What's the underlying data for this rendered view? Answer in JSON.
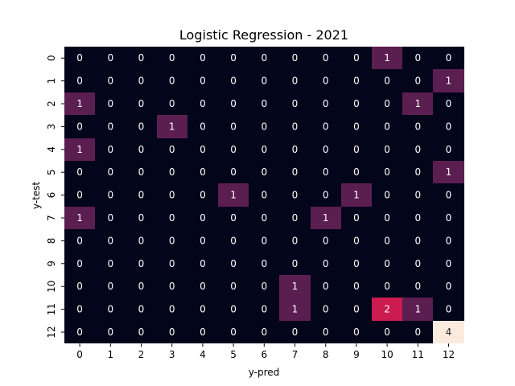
{
  "chart_data": {
    "type": "heatmap",
    "title": "Logistic Regression - 2021",
    "xlabel": "y-pred",
    "ylabel": "y-test",
    "x_categories": [
      "0",
      "1",
      "2",
      "3",
      "4",
      "5",
      "6",
      "7",
      "8",
      "9",
      "10",
      "11",
      "12"
    ],
    "y_categories": [
      "0",
      "1",
      "2",
      "3",
      "4",
      "5",
      "6",
      "7",
      "8",
      "9",
      "10",
      "11",
      "12"
    ],
    "values": [
      [
        0,
        0,
        0,
        0,
        0,
        0,
        0,
        0,
        0,
        0,
        1,
        0,
        0
      ],
      [
        0,
        0,
        0,
        0,
        0,
        0,
        0,
        0,
        0,
        0,
        0,
        0,
        1
      ],
      [
        1,
        0,
        0,
        0,
        0,
        0,
        0,
        0,
        0,
        0,
        0,
        1,
        0
      ],
      [
        0,
        0,
        0,
        1,
        0,
        0,
        0,
        0,
        0,
        0,
        0,
        0,
        0
      ],
      [
        1,
        0,
        0,
        0,
        0,
        0,
        0,
        0,
        0,
        0,
        0,
        0,
        0
      ],
      [
        0,
        0,
        0,
        0,
        0,
        0,
        0,
        0,
        0,
        0,
        0,
        0,
        1
      ],
      [
        0,
        0,
        0,
        0,
        0,
        1,
        0,
        0,
        0,
        1,
        0,
        0,
        0
      ],
      [
        1,
        0,
        0,
        0,
        0,
        0,
        0,
        0,
        1,
        0,
        0,
        0,
        0
      ],
      [
        0,
        0,
        0,
        0,
        0,
        0,
        0,
        0,
        0,
        0,
        0,
        0,
        0
      ],
      [
        0,
        0,
        0,
        0,
        0,
        0,
        0,
        0,
        0,
        0,
        0,
        0,
        0
      ],
      [
        0,
        0,
        0,
        0,
        0,
        0,
        0,
        1,
        0,
        0,
        0,
        0,
        0
      ],
      [
        0,
        0,
        0,
        0,
        0,
        0,
        0,
        1,
        0,
        0,
        2,
        1,
        0
      ],
      [
        0,
        0,
        0,
        0,
        0,
        0,
        0,
        0,
        0,
        0,
        0,
        0,
        4
      ]
    ],
    "vmin": 0,
    "vmax": 4,
    "annotated": true,
    "colorbar": false,
    "colors": {
      "0": "#03051a",
      "1": "#5b1e51",
      "2": "#cb1b4f",
      "4": "#faebdd"
    },
    "text_colors": {
      "dark_bg": "#ffffff",
      "light_bg": "#262626"
    }
  }
}
